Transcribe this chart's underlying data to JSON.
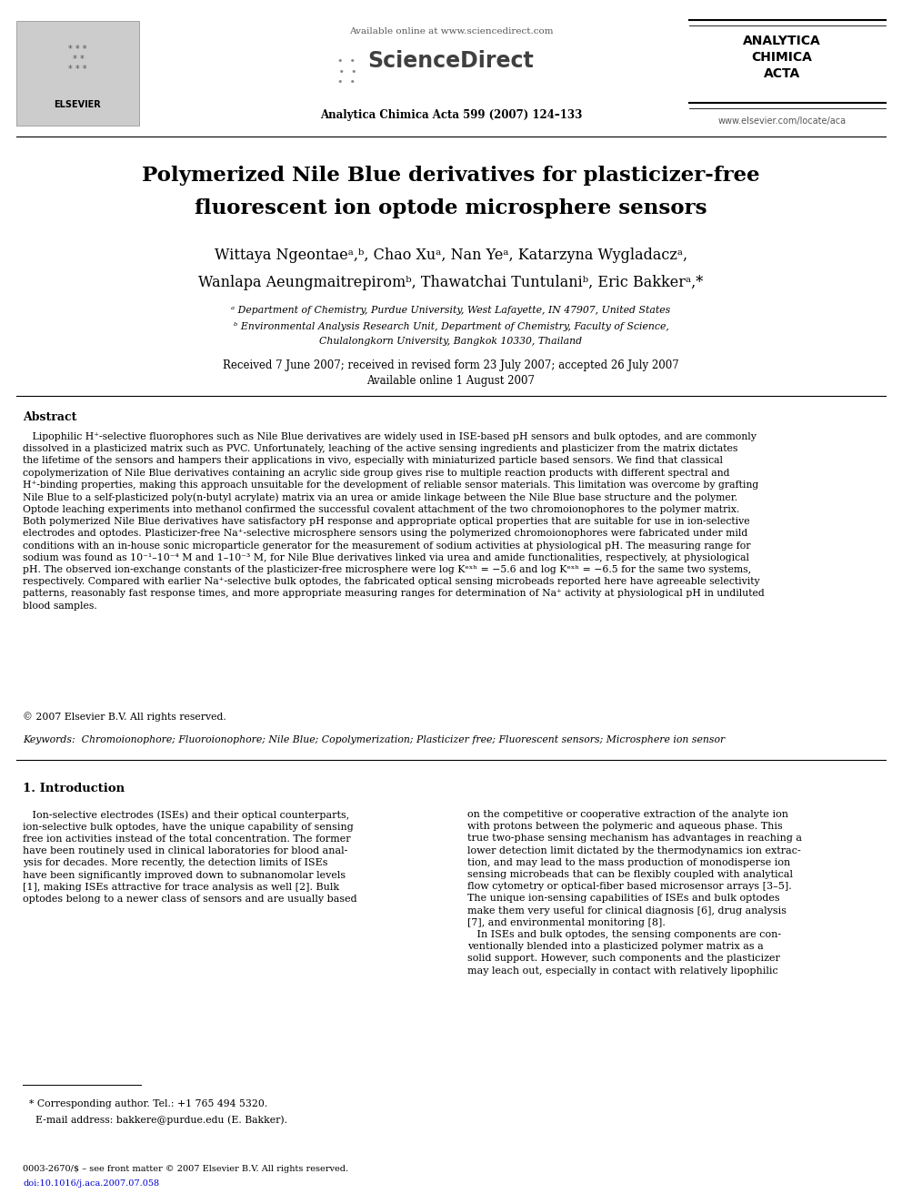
{
  "bg_color": "#ffffff",
  "page_width": 9.92,
  "page_height": 13.23,
  "header_avail": "Available online at www.sciencedirect.com",
  "header_sd": "ScienceDirect",
  "header_journal": "Analytica Chimica Acta 599 (2007) 124–133",
  "header_aca": "ANALYTICA\nCHIMICA\nACTA",
  "header_url": "www.elsevier.com/locate/aca",
  "title_line1": "Polymerized Nile Blue derivatives for plasticizer-free",
  "title_line2": "fluorescent ion optode microsphere sensors",
  "author_line1": "Wittaya Ngeontaeᵃ,ᵇ, Chao Xuᵃ, Nan Yeᵃ, Katarzyna Wygladaczᵃ,",
  "author_line2": "Wanlapa Aeungmaitrepiromᵇ, Thawatchai Tuntulaniᵇ, Eric Bakkerᵃ,*",
  "affil_a": "ᵃ Department of Chemistry, Purdue University, West Lafayette, IN 47907, United States",
  "affil_b1": "ᵇ Environmental Analysis Research Unit, Department of Chemistry, Faculty of Science,",
  "affil_b2": "Chulalongkorn University, Bangkok 10330, Thailand",
  "dates_line1": "Received 7 June 2007; received in revised form 23 July 2007; accepted 26 July 2007",
  "dates_line2": "Available online 1 August 2007",
  "abstract_title": "Abstract",
  "abstract_body": "   Lipophilic H⁺-selective fluorophores such as Nile Blue derivatives are widely used in ISE-based pH sensors and bulk optodes, and are commonly\ndissolved in a plasticized matrix such as PVC. Unfortunately, leaching of the active sensing ingredients and plasticizer from the matrix dictates\nthe lifetime of the sensors and hampers their applications in vivo, especially with miniaturized particle based sensors. We find that classical\ncopolymerization of Nile Blue derivatives containing an acrylic side group gives rise to multiple reaction products with different spectral and\nH⁺-binding properties, making this approach unsuitable for the development of reliable sensor materials. This limitation was overcome by grafting\nNile Blue to a self-plasticized poly(n-butyl acrylate) matrix via an urea or amide linkage between the Nile Blue base structure and the polymer.\nOptode leaching experiments into methanol confirmed the successful covalent attachment of the two chromoionophores to the polymer matrix.\nBoth polymerized Nile Blue derivatives have satisfactory pH response and appropriate optical properties that are suitable for use in ion-selective\nelectrodes and optodes. Plasticizer-free Na⁺-selective microsphere sensors using the polymerized chromoionophores were fabricated under mild\nconditions with an in-house sonic microparticle generator for the measurement of sodium activities at physiological pH. The measuring range for\nsodium was found as 10⁻¹–10⁻⁴ M and 1–10⁻³ M, for Nile Blue derivatives linked via urea and amide functionalities, respectively, at physiological\npH. The observed ion-exchange constants of the plasticizer-free microsphere were log Kᵉˣʰ = −5.6 and log Kᵉˣʰ = −6.5 for the same two systems,\nrespectively. Compared with earlier Na⁺-selective bulk optodes, the fabricated optical sensing microbeads reported here have agreeable selectivity\npatterns, reasonably fast response times, and more appropriate measuring ranges for determination of Na⁺ activity at physiological pH in undiluted\nblood samples.",
  "copyright": "© 2007 Elsevier B.V. All rights reserved.",
  "keywords": "Keywords:  Chromoionophore; Fluoroionophore; Nile Blue; Copolymerization; Plasticizer free; Fluorescent sensors; Microsphere ion sensor",
  "sec1_title": "1. Introduction",
  "sec1_col1": "   Ion-selective electrodes (ISEs) and their optical counterparts,\nion-selective bulk optodes, have the unique capability of sensing\nfree ion activities instead of the total concentration. The former\nhave been routinely used in clinical laboratories for blood anal-\nysis for decades. More recently, the detection limits of ISEs\nhave been significantly improved down to subnanomolar levels\n[1], making ISEs attractive for trace analysis as well [2]. Bulk\noptodes belong to a newer class of sensors and are usually based",
  "sec1_col2": "on the competitive or cooperative extraction of the analyte ion\nwith protons between the polymeric and aqueous phase. This\ntrue two-phase sensing mechanism has advantages in reaching a\nlower detection limit dictated by the thermodynamics ion extrac-\ntion, and may lead to the mass production of monodisperse ion\nsensing microbeads that can be flexibly coupled with analytical\nflow cytometry or optical-fiber based microsensor arrays [3–5].\nThe unique ion-sensing capabilities of ISEs and bulk optodes\nmake them very useful for clinical diagnosis [6], drug analysis\n[7], and environmental monitoring [8].\n   In ISEs and bulk optodes, the sensing components are con-\nventionally blended into a plasticized polymer matrix as a\nsolid support. However, such components and the plasticizer\nmay leach out, especially in contact with relatively lipophilic",
  "footnote1": "  * Corresponding author. Tel.: +1 765 494 5320.",
  "footnote2": "    E-mail address: bakkere@purdue.edu (E. Bakker).",
  "footer1": "0003-2670/$ – see front matter © 2007 Elsevier B.V. All rights reserved.",
  "footer2": "doi:10.1016/j.aca.2007.07.058"
}
